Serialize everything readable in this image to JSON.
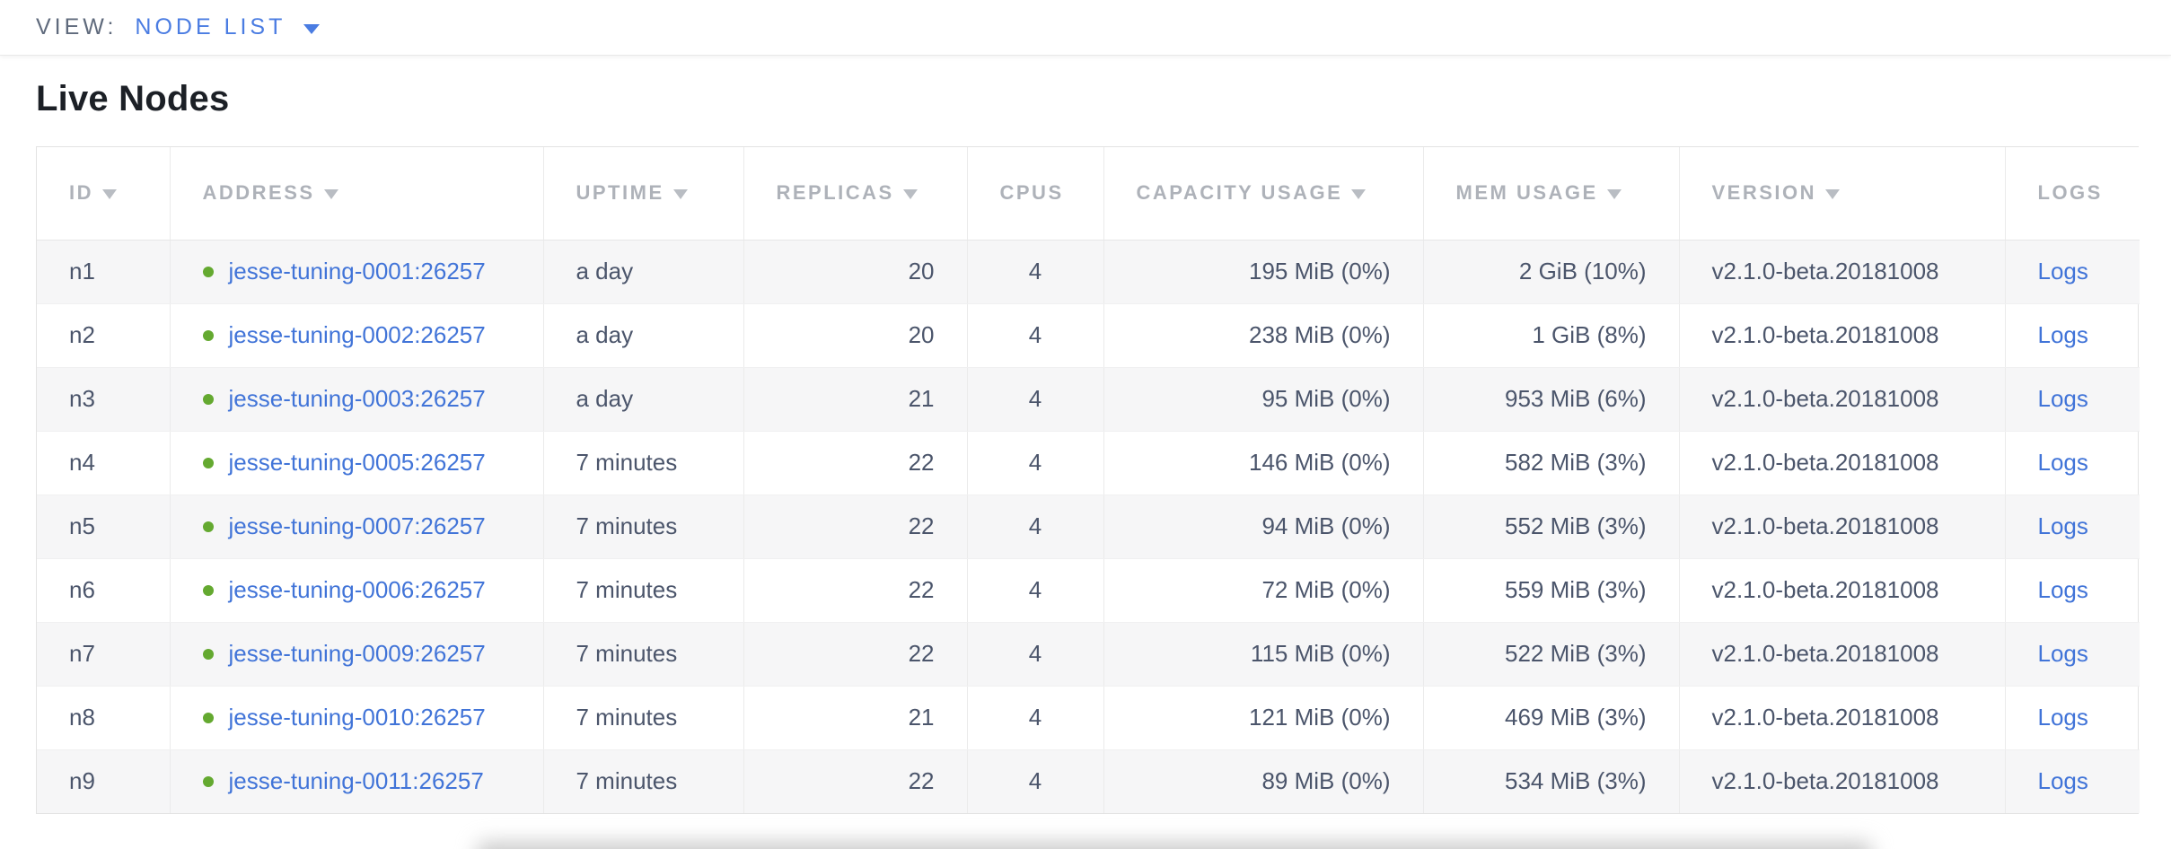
{
  "topbar": {
    "view_label": "VIEW:",
    "view_value": "NODE LIST"
  },
  "title": "Live Nodes",
  "table": {
    "columns": [
      {
        "key": "id",
        "label": "ID",
        "sortable": true,
        "align": "left"
      },
      {
        "key": "address",
        "label": "ADDRESS",
        "sortable": true,
        "align": "left"
      },
      {
        "key": "uptime",
        "label": "UPTIME",
        "sortable": true,
        "align": "left"
      },
      {
        "key": "replicas",
        "label": "REPLICAS",
        "sortable": true,
        "align": "right"
      },
      {
        "key": "cpus",
        "label": "CPUS",
        "sortable": false,
        "align": "center"
      },
      {
        "key": "capacity",
        "label": "CAPACITY USAGE",
        "sortable": true,
        "align": "right"
      },
      {
        "key": "mem",
        "label": "MEM USAGE",
        "sortable": true,
        "align": "right"
      },
      {
        "key": "version",
        "label": "VERSION",
        "sortable": true,
        "align": "left"
      },
      {
        "key": "logs",
        "label": "LOGS",
        "sortable": false,
        "align": "left"
      }
    ],
    "rows": [
      {
        "id": "n1",
        "address": "jesse-tuning-0001:26257",
        "uptime": "a day",
        "replicas": "20",
        "cpus": "4",
        "capacity": "195 MiB (0%)",
        "mem": "2 GiB (10%)",
        "version": "v2.1.0-beta.20181008",
        "logs": "Logs"
      },
      {
        "id": "n2",
        "address": "jesse-tuning-0002:26257",
        "uptime": "a day",
        "replicas": "20",
        "cpus": "4",
        "capacity": "238 MiB (0%)",
        "mem": "1 GiB (8%)",
        "version": "v2.1.0-beta.20181008",
        "logs": "Logs"
      },
      {
        "id": "n3",
        "address": "jesse-tuning-0003:26257",
        "uptime": "a day",
        "replicas": "21",
        "cpus": "4",
        "capacity": "95 MiB (0%)",
        "mem": "953 MiB (6%)",
        "version": "v2.1.0-beta.20181008",
        "logs": "Logs"
      },
      {
        "id": "n4",
        "address": "jesse-tuning-0005:26257",
        "uptime": "7 minutes",
        "replicas": "22",
        "cpus": "4",
        "capacity": "146 MiB (0%)",
        "mem": "582 MiB (3%)",
        "version": "v2.1.0-beta.20181008",
        "logs": "Logs"
      },
      {
        "id": "n5",
        "address": "jesse-tuning-0007:26257",
        "uptime": "7 minutes",
        "replicas": "22",
        "cpus": "4",
        "capacity": "94 MiB (0%)",
        "mem": "552 MiB (3%)",
        "version": "v2.1.0-beta.20181008",
        "logs": "Logs"
      },
      {
        "id": "n6",
        "address": "jesse-tuning-0006:26257",
        "uptime": "7 minutes",
        "replicas": "22",
        "cpus": "4",
        "capacity": "72 MiB (0%)",
        "mem": "559 MiB (3%)",
        "version": "v2.1.0-beta.20181008",
        "logs": "Logs"
      },
      {
        "id": "n7",
        "address": "jesse-tuning-0009:26257",
        "uptime": "7 minutes",
        "replicas": "22",
        "cpus": "4",
        "capacity": "115 MiB (0%)",
        "mem": "522 MiB (3%)",
        "version": "v2.1.0-beta.20181008",
        "logs": "Logs"
      },
      {
        "id": "n8",
        "address": "jesse-tuning-0010:26257",
        "uptime": "7 minutes",
        "replicas": "21",
        "cpus": "4",
        "capacity": "121 MiB (0%)",
        "mem": "469 MiB (3%)",
        "version": "v2.1.0-beta.20181008",
        "logs": "Logs"
      },
      {
        "id": "n9",
        "address": "jesse-tuning-0011:26257",
        "uptime": "7 minutes",
        "replicas": "22",
        "cpus": "4",
        "capacity": "89 MiB (0%)",
        "mem": "534 MiB (3%)",
        "version": "v2.1.0-beta.20181008",
        "logs": "Logs"
      }
    ]
  },
  "colors": {
    "link_blue": "#4174d8",
    "dropdown_blue": "#4a7ce2",
    "healthy_green": "#64a930",
    "header_gray": "#aeb2b9",
    "body_text": "#4b556b",
    "stripe_gray": "#f6f6f7"
  }
}
